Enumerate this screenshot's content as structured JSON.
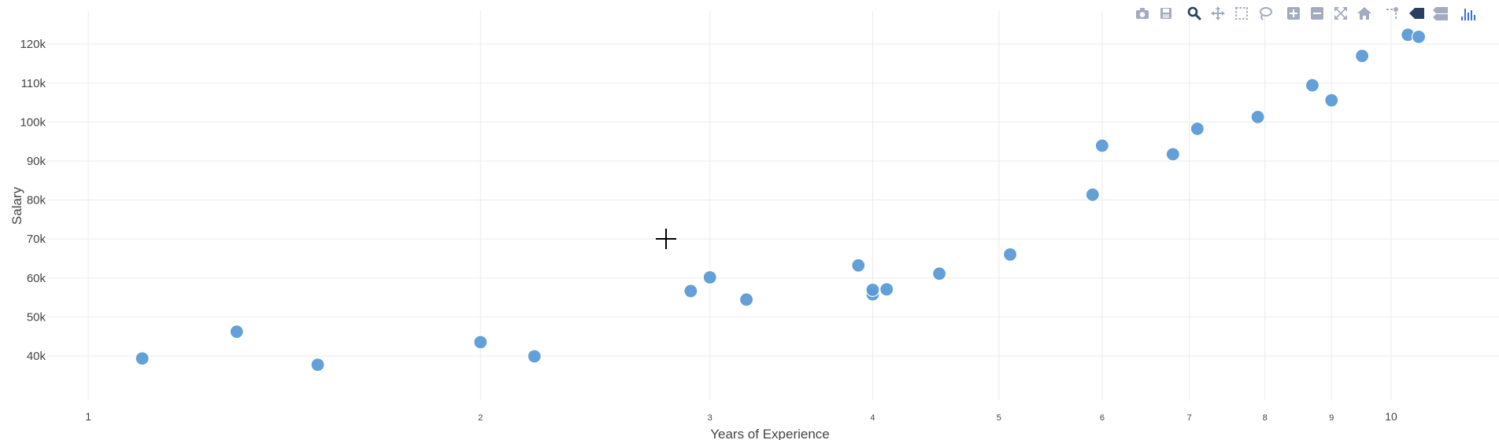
{
  "chart_data": {
    "type": "scatter",
    "title": "",
    "xlabel": "Years of Experience",
    "ylabel": "Salary",
    "x_scale": "log",
    "xlim": [
      0.93,
      12.1
    ],
    "ylim": [
      28500,
      128500
    ],
    "x_ticks": [
      {
        "value": 1,
        "label": "1",
        "size": 14
      },
      {
        "value": 2,
        "label": "2",
        "size": 11
      },
      {
        "value": 3,
        "label": "3",
        "size": 11
      },
      {
        "value": 4,
        "label": "4",
        "size": 11
      },
      {
        "value": 5,
        "label": "5",
        "size": 11
      },
      {
        "value": 6,
        "label": "6",
        "size": 11
      },
      {
        "value": 7,
        "label": "7",
        "size": 11
      },
      {
        "value": 8,
        "label": "8",
        "size": 11
      },
      {
        "value": 9,
        "label": "9",
        "size": 11
      },
      {
        "value": 10,
        "label": "10",
        "size": 14
      }
    ],
    "y_ticks": [
      {
        "value": 40000,
        "label": "40k"
      },
      {
        "value": 50000,
        "label": "50k"
      },
      {
        "value": 60000,
        "label": "60k"
      },
      {
        "value": 70000,
        "label": "70k"
      },
      {
        "value": 80000,
        "label": "80k"
      },
      {
        "value": 90000,
        "label": "90k"
      },
      {
        "value": 100000,
        "label": "100k"
      },
      {
        "value": 110000,
        "label": "110k"
      },
      {
        "value": 120000,
        "label": "120k"
      }
    ],
    "grid": true,
    "marker_color": "#5b9bd5",
    "series": [
      {
        "points": [
          {
            "x": 1.1,
            "y": 39343
          },
          {
            "x": 1.3,
            "y": 46205
          },
          {
            "x": 1.5,
            "y": 37731
          },
          {
            "x": 2.0,
            "y": 43525
          },
          {
            "x": 2.2,
            "y": 39891
          },
          {
            "x": 2.9,
            "y": 56642
          },
          {
            "x": 3.0,
            "y": 60150
          },
          {
            "x": 3.2,
            "y": 54445
          },
          {
            "x": 3.9,
            "y": 63218
          },
          {
            "x": 4.0,
            "y": 55794
          },
          {
            "x": 4.0,
            "y": 56957
          },
          {
            "x": 4.1,
            "y": 57081
          },
          {
            "x": 4.5,
            "y": 61111
          },
          {
            "x": 5.1,
            "y": 66029
          },
          {
            "x": 5.9,
            "y": 81363
          },
          {
            "x": 6.0,
            "y": 93940
          },
          {
            "x": 6.8,
            "y": 91738
          },
          {
            "x": 7.1,
            "y": 98273
          },
          {
            "x": 7.9,
            "y": 101302
          },
          {
            "x": 8.7,
            "y": 109431
          },
          {
            "x": 9.0,
            "y": 105582
          },
          {
            "x": 9.5,
            "y": 116969
          },
          {
            "x": 10.3,
            "y": 122391
          },
          {
            "x": 10.5,
            "y": 121872
          }
        ]
      }
    ]
  },
  "modebar": {
    "icon_color": "#a3acbe",
    "active_color": "#2a3f5f",
    "logo_color": "#3b6fd6",
    "buttons": [
      {
        "icon": "camera-icon",
        "active": false
      },
      {
        "icon": "save-icon",
        "active": false
      },
      {
        "icon": "zoom-icon",
        "active": true
      },
      {
        "icon": "pan-icon",
        "active": false
      },
      {
        "icon": "box-select-icon",
        "active": false
      },
      {
        "icon": "lasso-icon",
        "active": false
      },
      {
        "icon": "zoom-in-icon",
        "active": false
      },
      {
        "icon": "zoom-out-icon",
        "active": false
      },
      {
        "icon": "autoscale-icon",
        "active": false
      },
      {
        "icon": "reset-axes-icon",
        "active": false
      },
      {
        "icon": "spike-lines-icon",
        "active": false
      },
      {
        "icon": "hover-closest-icon",
        "active": true
      },
      {
        "icon": "hover-compare-icon",
        "active": false
      },
      {
        "icon": "plotly-logo-icon",
        "active": false
      }
    ]
  }
}
